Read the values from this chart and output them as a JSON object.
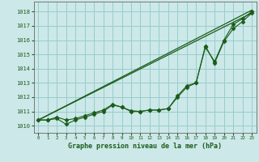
{
  "title": "Graphe pression niveau de la mer (hPa)",
  "background_color": "#cce8e8",
  "grid_color": "#99cccc",
  "line_color": "#1a5c1a",
  "xlim": [
    -0.5,
    23.5
  ],
  "ylim": [
    1009.5,
    1018.7
  ],
  "yticks": [
    1010,
    1011,
    1012,
    1013,
    1014,
    1015,
    1016,
    1017,
    1018
  ],
  "xticks": [
    0,
    1,
    2,
    3,
    4,
    5,
    6,
    7,
    8,
    9,
    10,
    11,
    12,
    13,
    14,
    15,
    16,
    17,
    18,
    19,
    20,
    21,
    22,
    23
  ],
  "line1_x": [
    0,
    23
  ],
  "line1_y": [
    1010.4,
    1018.1
  ],
  "line2_x": [
    0,
    23
  ],
  "line2_y": [
    1010.4,
    1017.9
  ],
  "series_x": [
    0,
    1,
    2,
    3,
    4,
    5,
    6,
    7,
    8,
    9,
    10,
    11,
    12,
    13,
    14,
    15,
    16,
    17,
    18,
    19,
    20,
    21,
    22,
    23
  ],
  "series_y": [
    1010.4,
    1010.4,
    1010.5,
    1010.1,
    1010.4,
    1010.6,
    1010.8,
    1011.0,
    1011.45,
    1011.3,
    1011.0,
    1011.0,
    1011.1,
    1011.1,
    1011.2,
    1012.1,
    1012.8,
    1013.0,
    1015.5,
    1014.5,
    1016.0,
    1017.1,
    1017.5,
    1018.0
  ],
  "series2_x": [
    0,
    1,
    2,
    3,
    4,
    5,
    6,
    7,
    8,
    9,
    10,
    11,
    12,
    13,
    14,
    15,
    16,
    17,
    18,
    19,
    20,
    21,
    22,
    23
  ],
  "series2_y": [
    1010.4,
    1010.4,
    1010.6,
    1010.4,
    1010.5,
    1010.7,
    1010.9,
    1011.1,
    1011.5,
    1011.3,
    1011.05,
    1011.0,
    1011.1,
    1011.1,
    1011.2,
    1012.0,
    1012.7,
    1013.0,
    1015.6,
    1014.4,
    1015.9,
    1016.8,
    1017.3,
    1017.9
  ]
}
